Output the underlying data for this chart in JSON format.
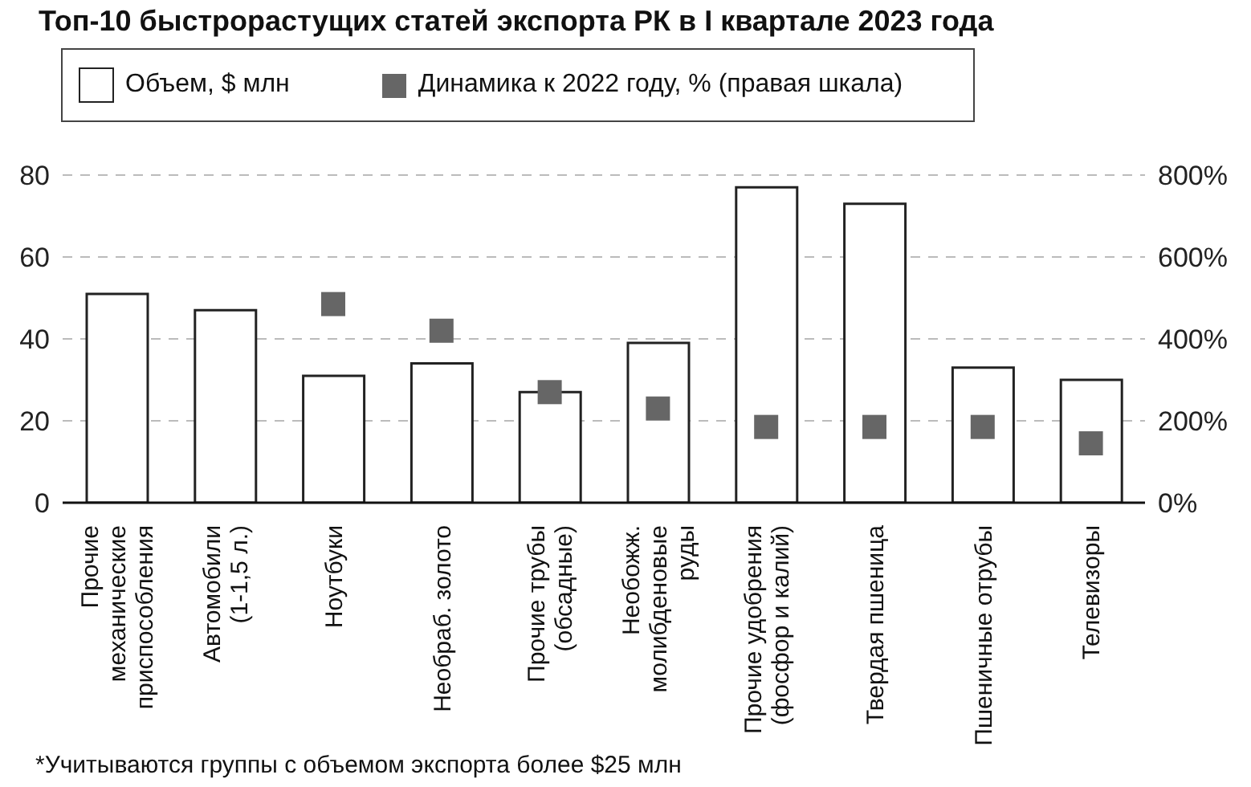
{
  "chart_data": {
    "type": "bar",
    "title": "Топ-10 быстрорастущих статей экспорта РК в I квартале 2023 года",
    "annotations": [
      "*Учитываются группы с объемом экспорта более $25 млн"
    ],
    "categories": [
      "Прочие механические приспособления",
      "Автомобили (1-1,5 л.)",
      "Ноутбуки",
      "Необраб. золото",
      "Прочие трубы (обсадные)",
      "Необожж. молибденовые руды",
      "Прочие удобрения (фосфор и калий)",
      "Твердая пшеница",
      "Пшеничные отрубы",
      "Телевизоры"
    ],
    "series": [
      {
        "name": "Объем, $ млн",
        "color": "#ffffff",
        "values": [
          51,
          47,
          31,
          34,
          27,
          39,
          77,
          73,
          33,
          30
        ]
      },
      {
        "name": "Динамика к 2022 году, % (правая шкала)",
        "type": "scatter",
        "axis": "y2",
        "color": "#666666",
        "values": [
          null,
          null,
          485,
          420,
          270,
          230,
          185,
          185,
          185,
          145
        ]
      }
    ],
    "ylim": [
      0,
      80
    ],
    "yticks": [
      0,
      20,
      40,
      60,
      80
    ],
    "y2lim": [
      0,
      800
    ],
    "y2ticks": [
      {
        "value": 0,
        "label": "0%"
      },
      {
        "value": 200,
        "label": "200%"
      },
      {
        "value": 400,
        "label": "400%"
      },
      {
        "value": 600,
        "label": "600%"
      },
      {
        "value": 800,
        "label": "800%"
      }
    ],
    "grid": "y",
    "legend": "top",
    "marker": "square"
  }
}
